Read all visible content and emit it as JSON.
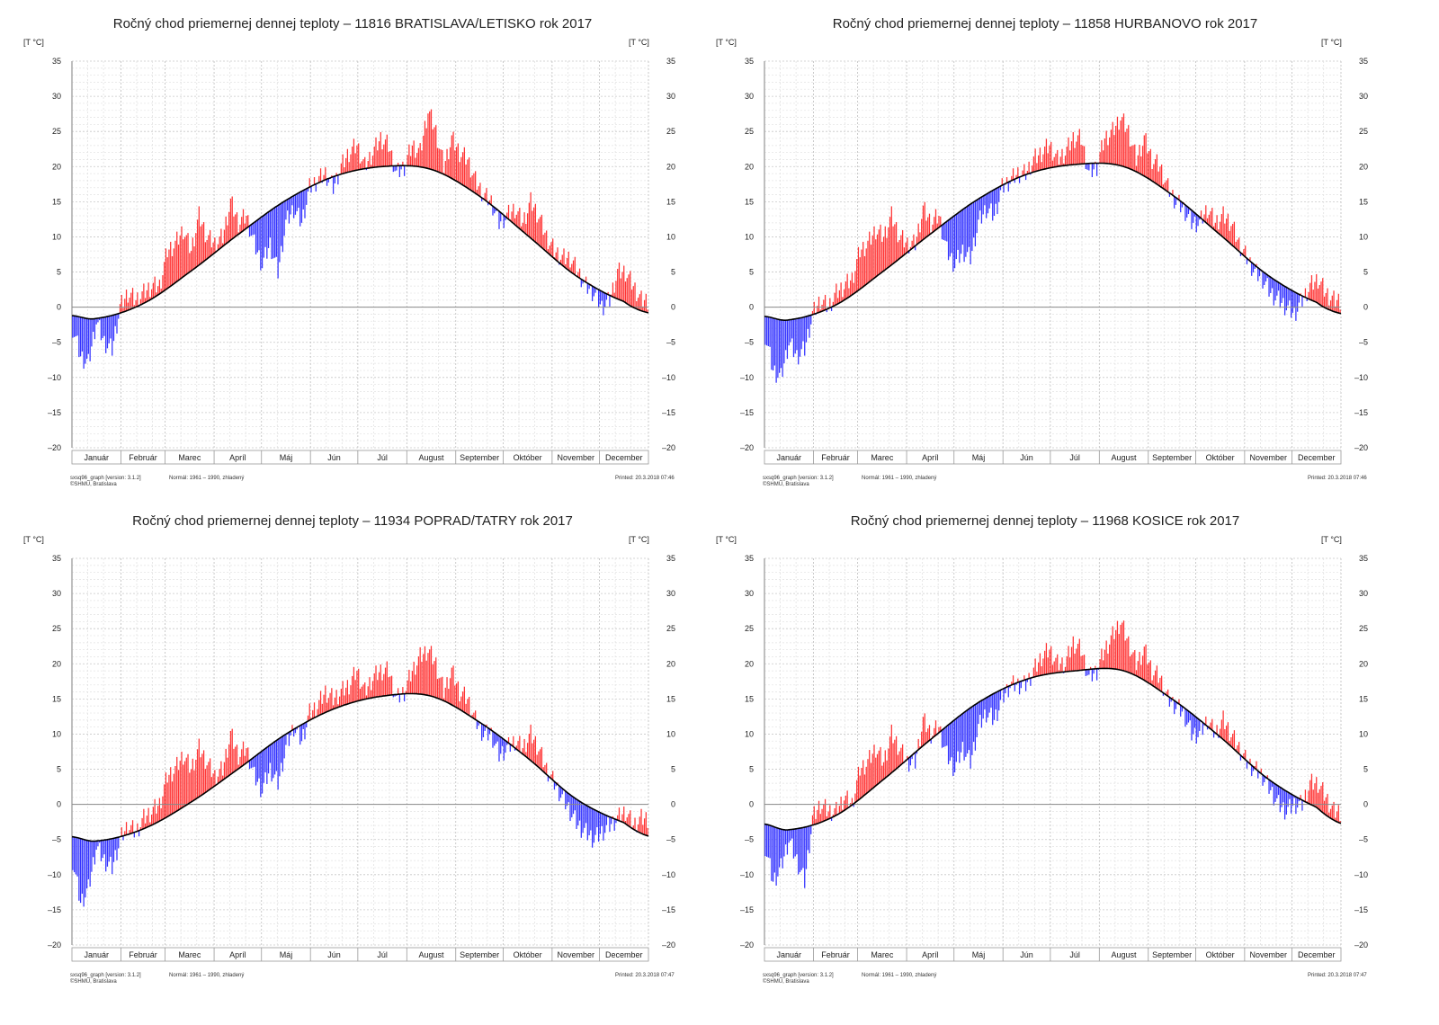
{
  "common": {
    "unit_label": "[T °C]",
    "months": [
      "Január",
      "Február",
      "Marec",
      "Apríl",
      "Máj",
      "Jún",
      "Júl",
      "August",
      "September",
      "Október",
      "November",
      "December"
    ],
    "y_ticks": [
      "35",
      "30",
      "25",
      "20",
      "15",
      "10",
      "5",
      "0",
      "–5",
      "–10",
      "–15",
      "–20"
    ],
    "footer_program": "sxsq96_graph [version: 3.1.2]",
    "footer_normal": "Normál: 1961 – 1990, zhladený",
    "footer_copyright": "©SHMÚ, Bratislava",
    "colors": {
      "above": "#ff3333",
      "below": "#3333ff",
      "normal": "#000000",
      "zero": "#888888"
    }
  },
  "chart_data": [
    {
      "type": "bar",
      "title": "Ročný chod priemernej dennej teploty – 11816 BRATISLAVA/LETISKO rok 2017",
      "printed": "Printed: 20.3.2018 07:46",
      "ylabel": "[T °C]",
      "ylim": [
        -20,
        35
      ],
      "normal_monthly_nodes": [
        -1.2,
        -1.6,
        0.5,
        5.0,
        10.3,
        15.2,
        18.6,
        20.0,
        19.6,
        15.8,
        10.2,
        4.5,
        0.8,
        -0.8
      ],
      "daily_pentad_values": [
        -3,
        -7,
        -8,
        -2,
        -5,
        -6,
        0,
        2,
        1,
        2,
        3,
        3,
        8,
        9,
        11,
        8,
        13,
        10,
        9,
        10,
        15,
        12,
        13,
        9,
        6,
        9,
        5,
        12,
        14,
        12,
        17,
        18,
        19,
        17,
        20,
        22,
        23,
        20,
        22,
        24,
        23,
        19,
        20,
        23,
        22,
        28,
        25,
        20,
        24,
        22,
        21,
        18,
        16,
        15,
        12,
        13,
        14,
        12,
        15,
        13,
        10,
        8,
        7,
        7,
        5,
        3,
        2,
        0,
        1,
        5,
        5,
        3,
        1
      ]
    },
    {
      "type": "bar",
      "title": "Ročný chod priemernej dennej teploty – 11858 HURBANOVO rok 2017",
      "printed": "Printed: 20.3.2018 07:46",
      "ylabel": "[T °C]",
      "ylim": [
        -20,
        35
      ],
      "normal_monthly_nodes": [
        -1.3,
        -1.8,
        0.3,
        5.0,
        10.4,
        15.4,
        18.9,
        20.3,
        20.0,
        16.0,
        10.3,
        4.5,
        0.7,
        -0.9
      ],
      "daily_pentad_values": [
        -4,
        -9,
        -10,
        -5,
        -7,
        -6,
        -1,
        1,
        0,
        2,
        3,
        4,
        8,
        9,
        11,
        10,
        13,
        10,
        9,
        9,
        14,
        12,
        13,
        8,
        6,
        8,
        7,
        12,
        14,
        13,
        17,
        18,
        19,
        19,
        21,
        22,
        23,
        21,
        22,
        24,
        24,
        19,
        20,
        24,
        25,
        27,
        25,
        21,
        24,
        21,
        20,
        17,
        15,
        14,
        12,
        12,
        14,
        12,
        13,
        12,
        9,
        7,
        5,
        4,
        2,
        1,
        0,
        -1,
        1,
        3,
        4,
        2,
        1
      ]
    },
    {
      "type": "bar",
      "title": "Ročný chod priemernej dennej teploty – 11934 POPRAD/TATRY rok 2017",
      "printed": "Printed: 20.3.2018 07:47",
      "ylabel": "[T °C]",
      "ylim": [
        -20,
        35
      ],
      "normal_monthly_nodes": [
        -4.6,
        -5.2,
        -3.5,
        0.2,
        5.0,
        10.0,
        13.6,
        15.4,
        15.4,
        11.7,
        6.6,
        0.8,
        -2.6,
        -4.5
      ],
      "daily_pentad_values": [
        -8,
        -14,
        -12,
        -6,
        -8,
        -9,
        -5,
        -3,
        -4,
        -2,
        -1,
        0,
        4,
        5,
        7,
        5,
        8,
        6,
        4,
        5,
        10,
        7,
        8,
        4,
        2,
        5,
        3,
        8,
        11,
        9,
        13,
        14,
        16,
        15,
        16,
        17,
        19,
        16,
        18,
        19,
        19,
        15,
        16,
        19,
        21,
        22,
        20,
        16,
        19,
        16,
        15,
        12,
        10,
        10,
        7,
        8,
        9,
        8,
        10,
        8,
        5,
        3,
        1,
        -1,
        -3,
        -4,
        -5,
        -4,
        -3,
        -2,
        -1,
        -3,
        -2
      ]
    },
    {
      "type": "bar",
      "title": "Ročný chod priemernej dennej teploty – 11968 KOSICE rok 2017",
      "printed": "Printed: 20.3.2018 07:47",
      "ylabel": "[T °C]",
      "ylim": [
        -20,
        35
      ],
      "normal_monthly_nodes": [
        -2.8,
        -3.6,
        -1.6,
        3.4,
        9.2,
        14.5,
        17.8,
        19.0,
        19.0,
        15.0,
        9.6,
        3.6,
        -0.4,
        -2.7
      ],
      "daily_pentad_values": [
        -6,
        -11,
        -9,
        -5,
        -8,
        -11,
        -2,
        0,
        -1,
        -1,
        1,
        0,
        5,
        6,
        8,
        6,
        10,
        8,
        6,
        6,
        12,
        10,
        11,
        7,
        5,
        8,
        6,
        11,
        13,
        12,
        15,
        17,
        17,
        17,
        19,
        21,
        22,
        20,
        20,
        23,
        22,
        18,
        19,
        22,
        24,
        26,
        23,
        20,
        22,
        19,
        18,
        15,
        14,
        13,
        10,
        10,
        12,
        10,
        12,
        10,
        8,
        6,
        5,
        4,
        2,
        0,
        -1,
        0,
        0,
        3,
        3,
        1,
        -1
      ]
    }
  ]
}
